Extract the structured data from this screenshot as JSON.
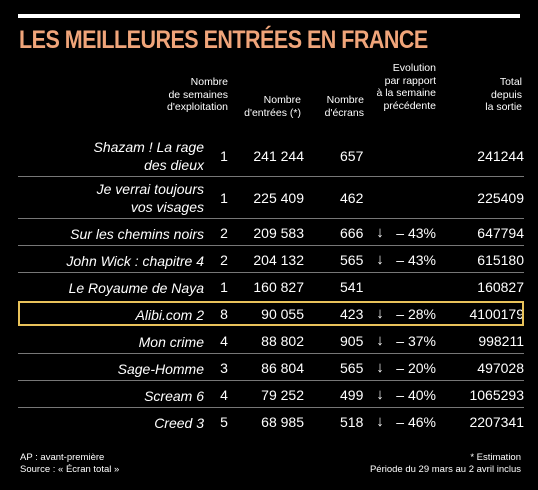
{
  "title": "LES MEILLEURES ENTRÉES EN FRANCE",
  "headers": {
    "weeks": [
      "Nombre",
      "de semaines",
      "d'exploitation"
    ],
    "entries": [
      "Nombre",
      "d'entrées (*)"
    ],
    "screens": [
      "Nombre",
      "d'écrans"
    ],
    "evolution": [
      "Evolution",
      "par rapport",
      "à la semaine",
      "précédente"
    ],
    "total": [
      "Total",
      "depuis",
      "la sortie"
    ]
  },
  "arrow_icon": "↓",
  "rows": [
    {
      "title": [
        "Shazam ! La rage",
        "des dieux"
      ],
      "weeks": "1",
      "entries": "241 244",
      "screens": "657",
      "evolution": "",
      "total": "241244",
      "highlight": false
    },
    {
      "title": [
        "Je verrai toujours",
        "vos visages"
      ],
      "weeks": "1",
      "entries": "225 409",
      "screens": "462",
      "evolution": "",
      "total": "225409",
      "highlight": false
    },
    {
      "title": [
        "Sur les chemins noirs"
      ],
      "weeks": "2",
      "entries": "209 583",
      "screens": "666",
      "evolution": "– 43%",
      "total": "647794",
      "highlight": false
    },
    {
      "title": [
        "John Wick : chapitre 4"
      ],
      "weeks": "2",
      "entries": "204 132",
      "screens": "565",
      "evolution": "– 43%",
      "total": "615180",
      "highlight": false
    },
    {
      "title": [
        "Le Royaume de Naya"
      ],
      "weeks": "1",
      "entries": "160 827",
      "screens": "541",
      "evolution": "",
      "total": "160827",
      "highlight": false
    },
    {
      "title": [
        "Alibi.com 2"
      ],
      "weeks": "8",
      "entries": "90 055",
      "screens": "423",
      "evolution": "– 28%",
      "total": "4100179",
      "highlight": true
    },
    {
      "title": [
        "Mon crime"
      ],
      "weeks": "4",
      "entries": "88 802",
      "screens": "905",
      "evolution": "– 37%",
      "total": "998211",
      "highlight": false
    },
    {
      "title": [
        "Sage-Homme"
      ],
      "weeks": "3",
      "entries": "86 804",
      "screens": "565",
      "evolution": "– 20%",
      "total": "497028",
      "highlight": false
    },
    {
      "title": [
        "Scream 6"
      ],
      "weeks": "4",
      "entries": "79 252",
      "screens": "499",
      "evolution": "– 40%",
      "total": "1065293",
      "highlight": false
    },
    {
      "title": [
        "Creed 3"
      ],
      "weeks": "5",
      "entries": "68 985",
      "screens": "518",
      "evolution": "– 46%",
      "total": "2207341",
      "highlight": false
    }
  ],
  "footer": {
    "left": [
      "AP : avant-première",
      "Source : « Écran total »"
    ],
    "right": [
      "* Estimation",
      "Période du 29 mars au 2 avril inclus"
    ]
  }
}
